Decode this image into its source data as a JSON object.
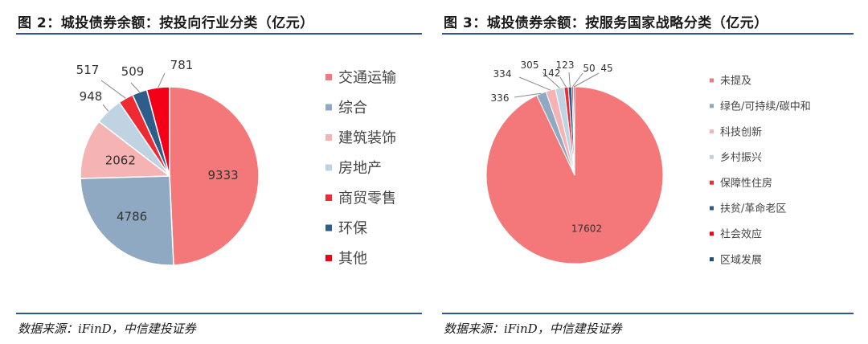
{
  "charts": {
    "left": {
      "title": "图 2：城投债券余额：按投向行业分类（亿元）",
      "source": "数据来源：iFinD，中信建投证券"
    },
    "right": {
      "title": "图 3：城投债券余额：按服务国家战略分类（亿元）",
      "source": "数据来源：iFinD，中信建投证券"
    }
  },
  "chart_data": [
    {
      "type": "pie",
      "title": "图 2：城投债券余额：按投向行业分类（亿元）",
      "legend_position": "right",
      "series": [
        {
          "name": "交通运输",
          "value": 9333,
          "color": "#f4777a"
        },
        {
          "name": "综合",
          "value": 4786,
          "color": "#8ea9c1"
        },
        {
          "name": "建筑装饰",
          "value": 2062,
          "color": "#f6b3b4"
        },
        {
          "name": "房地产",
          "value": 948,
          "color": "#bfd3e3"
        },
        {
          "name": "商贸零售",
          "value": 517,
          "color": "#ee2b33"
        },
        {
          "name": "环保",
          "value": 509,
          "color": "#2e5d8a"
        },
        {
          "name": "其他",
          "value": 781,
          "color": "#f30018"
        }
      ]
    },
    {
      "type": "pie",
      "title": "图 3：城投债券余额：按服务国家战略分类（亿元）",
      "legend_position": "right",
      "series": [
        {
          "name": "未提及",
          "value": 17602,
          "color": "#f4777a"
        },
        {
          "name": "绿色/可持续/碳中和",
          "value": 336,
          "color": "#8ea9c1"
        },
        {
          "name": "科技创新",
          "value": 334,
          "color": "#f6b3b4"
        },
        {
          "name": "乡村振兴",
          "value": 305,
          "color": "#bfd3e3"
        },
        {
          "name": "保障性住房",
          "value": 142,
          "color": "#ee2b33"
        },
        {
          "name": "扶贫/革命老区",
          "value": 123,
          "color": "#2e5d8a"
        },
        {
          "name": "社会效应",
          "value": 50,
          "color": "#f30018"
        },
        {
          "name": "区域发展",
          "value": 45,
          "color": "#1f4e79"
        }
      ]
    }
  ]
}
